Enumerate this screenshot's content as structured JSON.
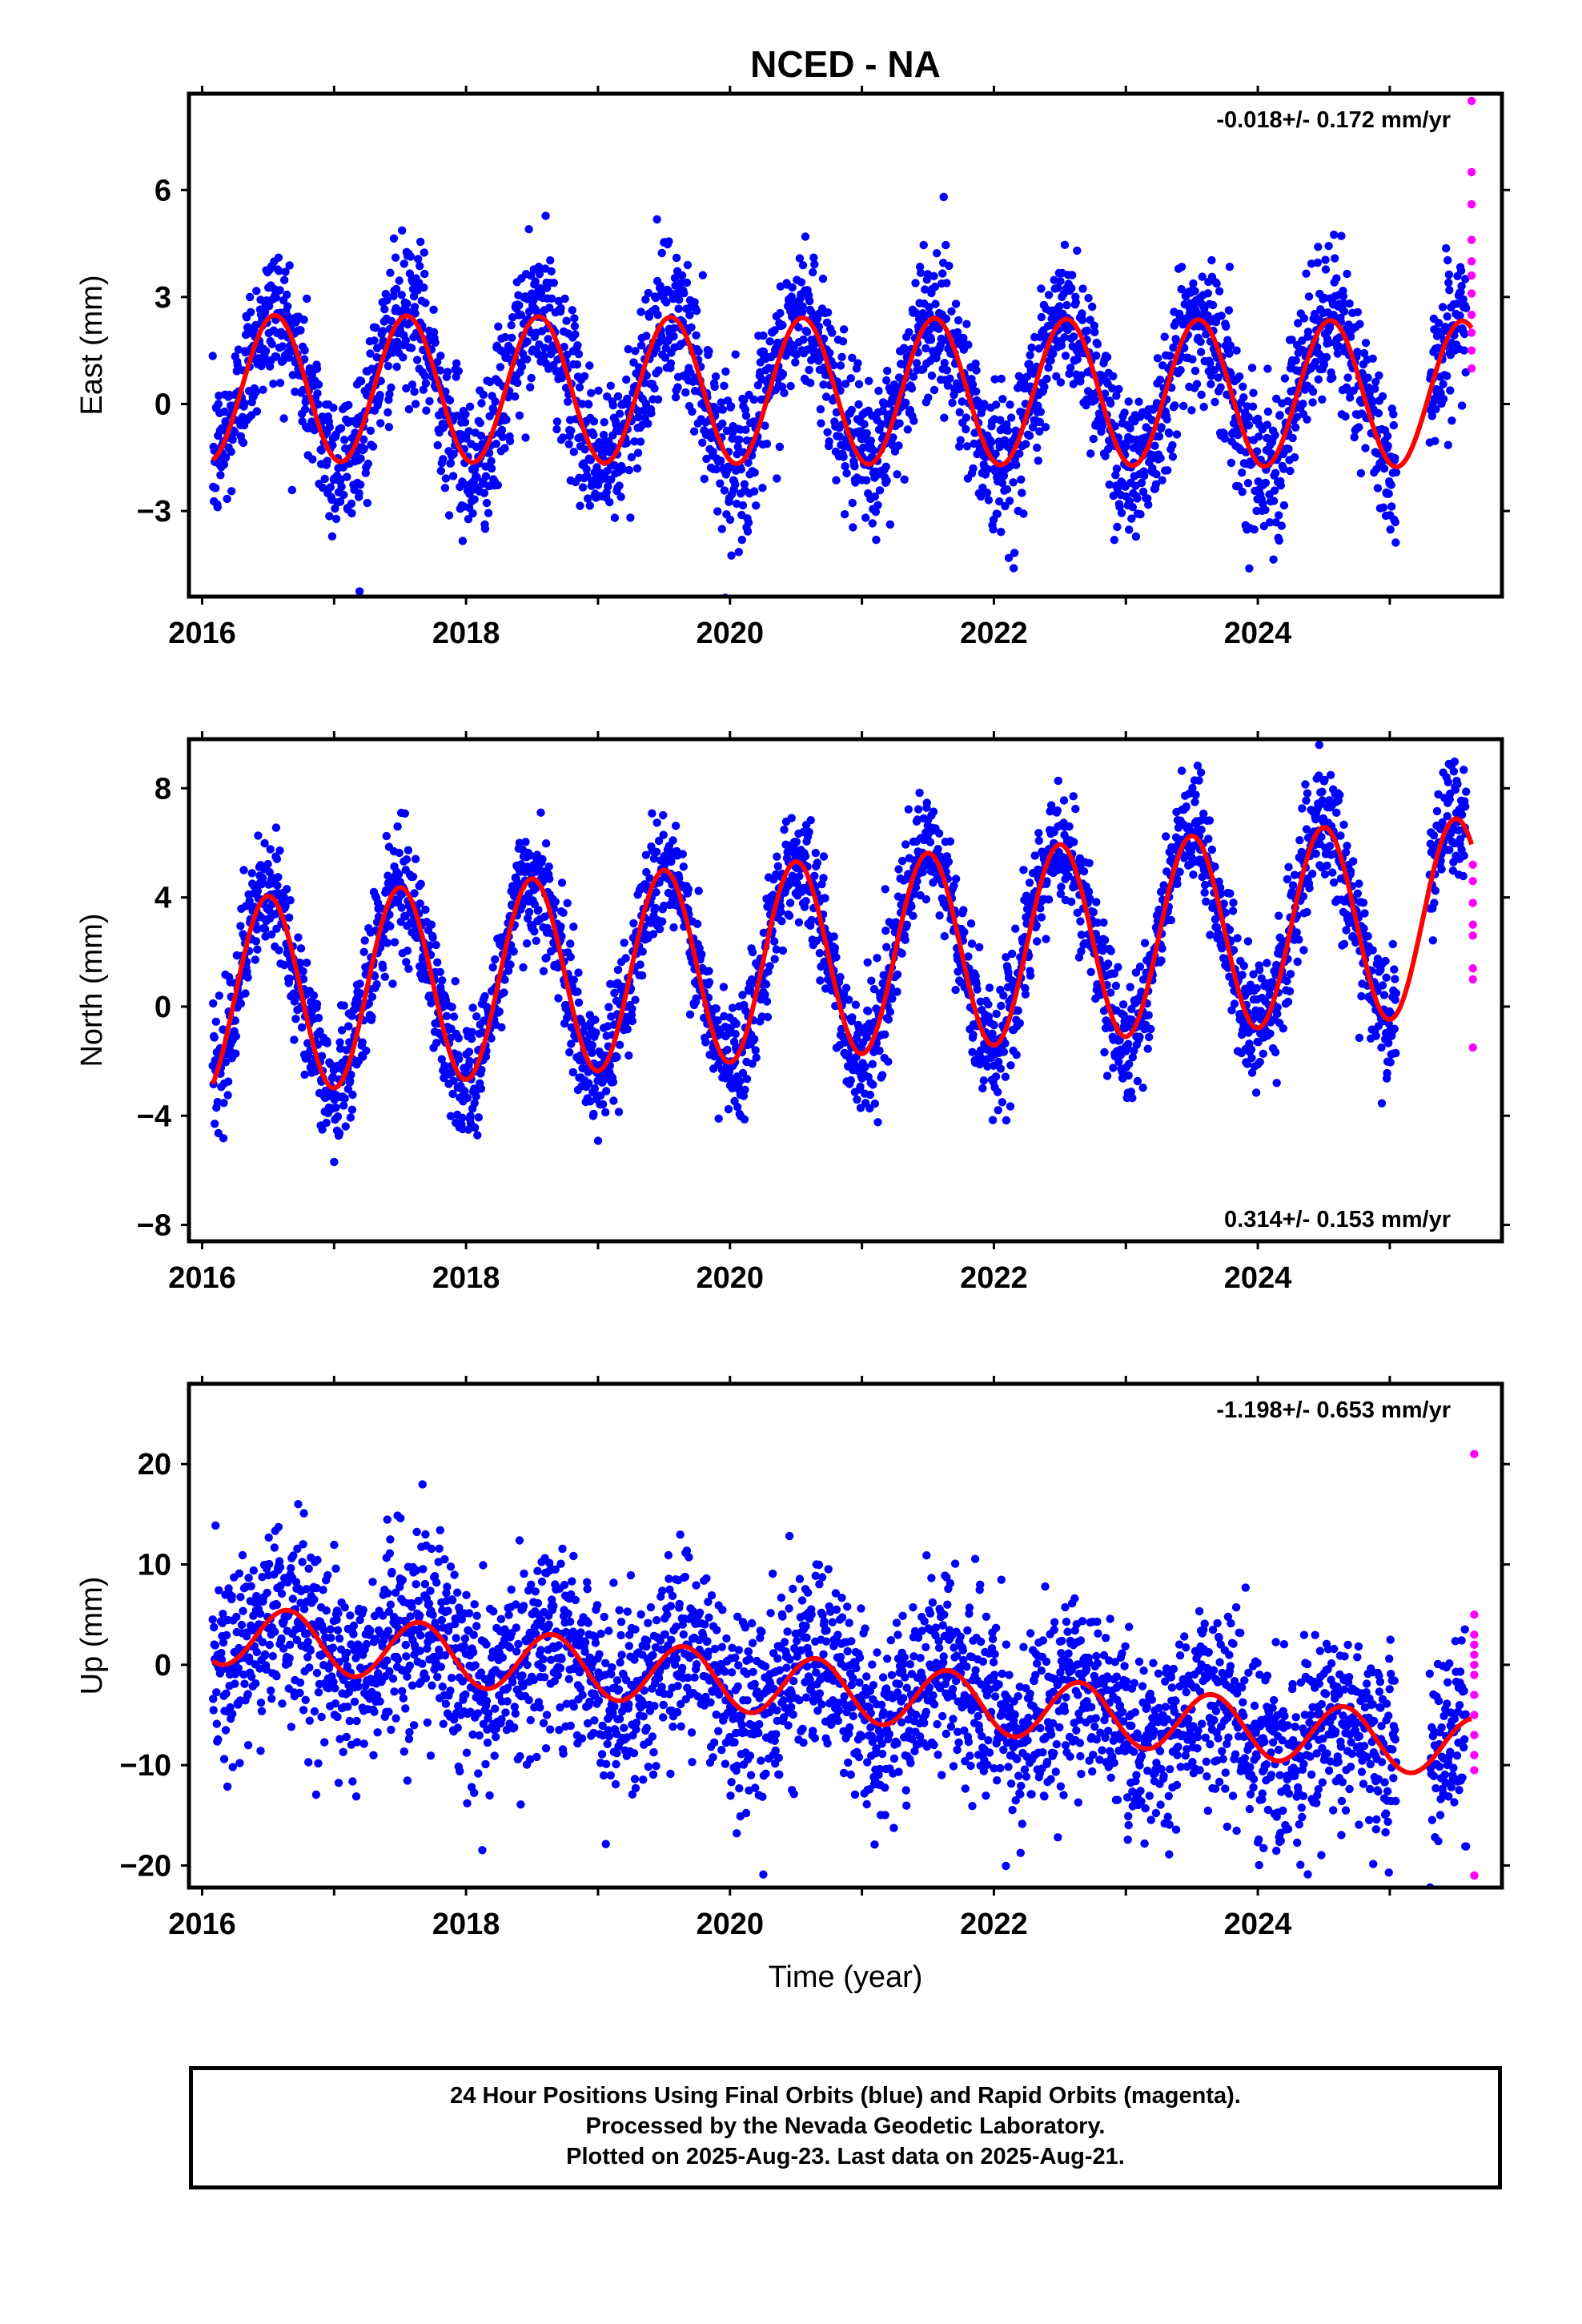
{
  "title": "NCED - NA",
  "footer": {
    "line1": "24 Hour Positions Using Final Orbits (blue) and Rapid Orbits (magenta).",
    "line2": "Processed by the Nevada Geodetic Laboratory.",
    "line3": "Plotted on 2025-Aug-23. Last data on 2025-Aug-21."
  },
  "colors": {
    "final_orbits": "#0000ff",
    "rapid_orbits": "#ff00ff",
    "model_fit": "#ff0000",
    "axes": "#000000"
  },
  "chart_data": [
    {
      "type": "scatter",
      "component": "East",
      "ylabel": "East (mm)",
      "xlabel": "",
      "rate": "-0.018+/- 0.172 mm/yr",
      "rate_position": "top-right",
      "xlim": [
        2015.9,
        2025.85
      ],
      "ylim": [
        -5.4,
        8.7
      ],
      "xticks": [
        2016,
        2018,
        2020,
        2022,
        2024
      ],
      "yticks": [
        -3,
        0,
        3,
        6
      ],
      "ytick_labels": [
        "−3",
        "0",
        "3",
        "6"
      ],
      "model": {
        "offset": 0.45,
        "amplitude": 2.05,
        "peak_phase": 0.55,
        "trend_mm_per_yr": -0.018
      },
      "noise_sd": 1.05,
      "series": [
        {
          "name": "Final Orbits",
          "color": "#0000ff",
          "description_points": [
            [
              2016.1,
              -1.4
            ],
            [
              2016.6,
              2.5
            ],
            [
              2017.0,
              -1.5
            ],
            [
              2017.6,
              2.5
            ],
            [
              2018.0,
              -1.6
            ],
            [
              2018.6,
              2.4
            ],
            [
              2019.0,
              -1.7
            ],
            [
              2019.6,
              2.4
            ],
            [
              2020.0,
              -1.6
            ],
            [
              2020.6,
              2.4
            ],
            [
              2021.0,
              -1.6
            ],
            [
              2021.6,
              2.4
            ],
            [
              2022.0,
              -1.6
            ],
            [
              2022.6,
              2.4
            ],
            [
              2023.0,
              -1.7
            ],
            [
              2023.6,
              2.4
            ],
            [
              2024.0,
              -1.7
            ],
            [
              2024.6,
              2.4
            ],
            [
              2025.0,
              -1.7
            ],
            [
              2025.6,
              2.3
            ]
          ]
        },
        {
          "name": "Rapid Orbits",
          "color": "#ff00ff",
          "points": [
            [
              2025.62,
              8.5
            ],
            [
              2025.62,
              6.5
            ],
            [
              2025.62,
              5.6
            ],
            [
              2025.62,
              4.6
            ],
            [
              2025.62,
              4.0
            ],
            [
              2025.62,
              3.6
            ],
            [
              2025.62,
              3.1
            ],
            [
              2025.62,
              2.5
            ],
            [
              2025.62,
              2.0
            ],
            [
              2025.62,
              1.5
            ],
            [
              2025.62,
              1.0
            ]
          ]
        }
      ]
    },
    {
      "type": "scatter",
      "component": "North",
      "ylabel": "North (mm)",
      "xlabel": "",
      "rate": "0.314+/- 0.153 mm/yr",
      "rate_position": "bottom-right",
      "xlim": [
        2015.9,
        2025.85
      ],
      "ylim": [
        -8.6,
        9.8
      ],
      "xticks": [
        2016,
        2018,
        2020,
        2022,
        2024
      ],
      "yticks": [
        -8,
        -4,
        0,
        4,
        8
      ],
      "ytick_labels": [
        "−8",
        "−4",
        "0",
        "4",
        "8"
      ],
      "model": {
        "offset": 0.3,
        "amplitude": 3.6,
        "peak_phase": 0.5,
        "trend_mm_per_yr": 0.314
      },
      "noise_sd": 1.1,
      "series": [
        {
          "name": "Final Orbits",
          "color": "#0000ff",
          "description_points": [
            [
              2016.1,
              -3.2
            ],
            [
              2016.55,
              4.0
            ],
            [
              2016.9,
              -3.5
            ],
            [
              2017.5,
              4.2
            ],
            [
              2017.95,
              -3.2
            ],
            [
              2018.5,
              4.6
            ],
            [
              2018.95,
              -2.9
            ],
            [
              2019.5,
              5.0
            ],
            [
              2019.95,
              -2.6
            ],
            [
              2020.5,
              5.3
            ],
            [
              2020.95,
              -2.3
            ],
            [
              2021.5,
              5.5
            ],
            [
              2021.95,
              -2.0
            ],
            [
              2022.5,
              5.8
            ],
            [
              2022.9,
              -1.6
            ],
            [
              2023.5,
              6.1
            ],
            [
              2023.95,
              -1.3
            ],
            [
              2024.5,
              6.4
            ],
            [
              2024.95,
              -1.0
            ],
            [
              2025.6,
              6.6
            ]
          ]
        },
        {
          "name": "Rapid Orbits",
          "color": "#ff00ff",
          "points": [
            [
              2025.63,
              5.2
            ],
            [
              2025.63,
              4.6
            ],
            [
              2025.63,
              3.8
            ],
            [
              2025.63,
              3.0
            ],
            [
              2025.63,
              2.6
            ],
            [
              2025.63,
              1.4
            ],
            [
              2025.63,
              1.0
            ],
            [
              2025.63,
              -1.5
            ]
          ]
        }
      ]
    },
    {
      "type": "scatter",
      "component": "Up",
      "ylabel": "Up (mm)",
      "xlabel": "Time (year)",
      "rate": "-1.198+/- 0.653 mm/yr",
      "rate_position": "top-right",
      "xlim": [
        2015.9,
        2025.85
      ],
      "ylim": [
        -22.2,
        28.0
      ],
      "xticks": [
        2016,
        2018,
        2020,
        2022,
        2024
      ],
      "yticks": [
        -20,
        -10,
        0,
        10,
        20
      ],
      "ytick_labels": [
        "−20",
        "−10",
        "0",
        "10",
        "20"
      ],
      "model": {
        "offset": 3.2,
        "amplitude": 3.0,
        "peak_phase": 0.65,
        "trend_mm_per_yr": -1.198
      },
      "noise_sd": 4.6,
      "series": [
        {
          "name": "Final Orbits",
          "color": "#0000ff",
          "description_points": [
            [
              2016.1,
              4.5
            ],
            [
              2016.3,
              1.5
            ],
            [
              2016.6,
              7.2
            ],
            [
              2017.0,
              6.0
            ],
            [
              2017.3,
              0.6
            ],
            [
              2017.6,
              6.0
            ],
            [
              2018.0,
              4.5
            ],
            [
              2018.25,
              -0.8
            ],
            [
              2018.6,
              5.0
            ],
            [
              2019.0,
              3.2
            ],
            [
              2019.25,
              -1.8
            ],
            [
              2019.6,
              3.9
            ],
            [
              2020.0,
              2.0
            ],
            [
              2020.25,
              -3.1
            ],
            [
              2020.6,
              2.5
            ],
            [
              2021.0,
              0.5
            ],
            [
              2021.25,
              -4.2
            ],
            [
              2021.6,
              1.5
            ],
            [
              2022.0,
              -0.5
            ],
            [
              2022.25,
              -5.2
            ],
            [
              2022.6,
              0.5
            ],
            [
              2023.0,
              -1.5
            ],
            [
              2023.25,
              -6.6
            ],
            [
              2023.6,
              -1.0
            ],
            [
              2024.0,
              -2.5
            ],
            [
              2024.25,
              -7.8
            ],
            [
              2024.6,
              -3.0
            ],
            [
              2025.0,
              -4.0
            ],
            [
              2025.25,
              -9.0
            ],
            [
              2025.6,
              -3.2
            ]
          ]
        },
        {
          "name": "Rapid Orbits",
          "color": "#ff00ff",
          "points": [
            [
              2025.64,
              21.0
            ],
            [
              2025.64,
              5.0
            ],
            [
              2025.64,
              3.0
            ],
            [
              2025.64,
              2.0
            ],
            [
              2025.64,
              1.0
            ],
            [
              2025.64,
              0.0
            ],
            [
              2025.64,
              -1.0
            ],
            [
              2025.64,
              -3.0
            ],
            [
              2025.64,
              -5.0
            ],
            [
              2025.64,
              -7.0
            ],
            [
              2025.64,
              -9.0
            ],
            [
              2025.64,
              -10.5
            ],
            [
              2025.64,
              -21.0
            ]
          ]
        }
      ]
    }
  ]
}
